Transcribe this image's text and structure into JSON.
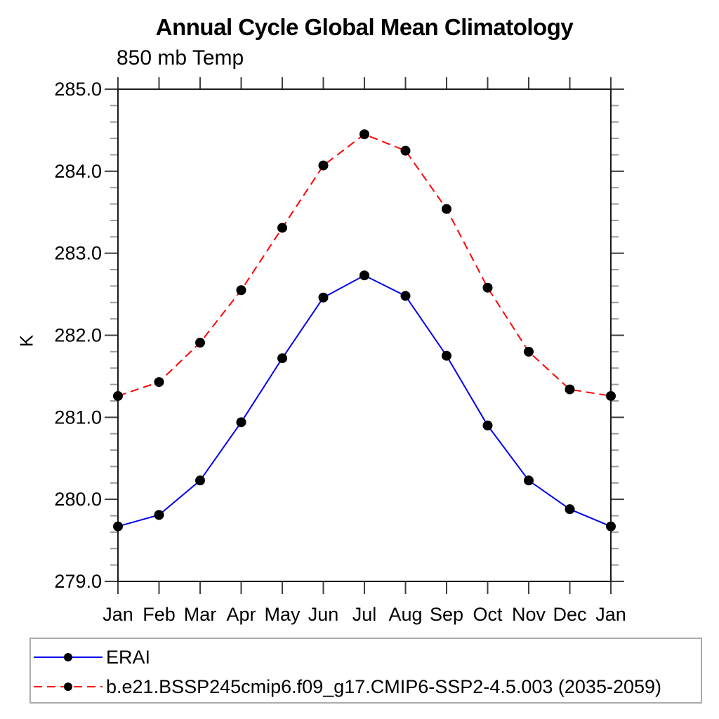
{
  "chart_data": {
    "type": "line",
    "title": "Annual Cycle Global Mean Climatology",
    "subtitle": "850 mb Temp",
    "ylabel": "K",
    "x_categories": [
      "Jan",
      "Feb",
      "Mar",
      "Apr",
      "May",
      "Jun",
      "Jul",
      "Aug",
      "Sep",
      "Oct",
      "Nov",
      "Dec",
      "Jan"
    ],
    "ylim": [
      279.0,
      285.0
    ],
    "y_major_ticks": [
      279.0,
      280.0,
      281.0,
      282.0,
      283.0,
      284.0,
      285.0
    ],
    "y_minor_step": 0.2,
    "grid": false,
    "legend_position": "bottom-left",
    "axis_color": "#1a1a1a",
    "major_tick_color": "#3f3f3f",
    "minor_tick_color": "#9b9b9b",
    "marker": "filled-circle",
    "marker_color": "#000000",
    "series": [
      {
        "name": "ERAI",
        "color": "#0000ee",
        "line_style": "solid",
        "values": [
          279.67,
          279.81,
          280.23,
          280.94,
          281.72,
          282.46,
          282.73,
          282.48,
          281.75,
          280.9,
          280.23,
          279.88,
          279.67
        ]
      },
      {
        "name": "b.e21.BSSP245cmip6.f09_g17.CMIP6-SSP2-4.5.003 (2035-2059)",
        "color": "#ff0000",
        "line_style": "dashed",
        "values": [
          281.26,
          281.43,
          281.91,
          282.55,
          283.31,
          284.07,
          284.45,
          284.25,
          283.54,
          282.58,
          281.8,
          281.34,
          281.26
        ]
      }
    ]
  }
}
